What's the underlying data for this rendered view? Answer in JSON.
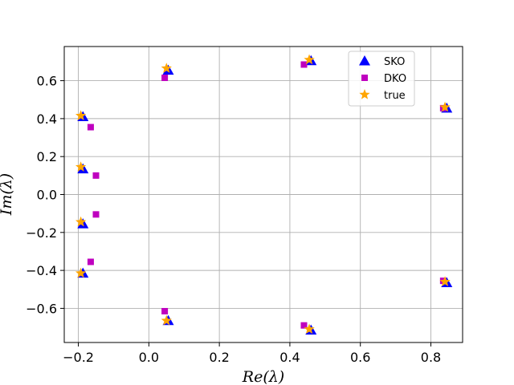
{
  "chart_data": {
    "type": "scatter",
    "title": "",
    "xlabel": "Re(λ)",
    "ylabel": "Im(λ)",
    "xlim": [
      -0.24,
      0.89
    ],
    "ylim": [
      -0.78,
      0.78
    ],
    "xticks": [
      -0.2,
      0.0,
      0.2,
      0.4,
      0.6,
      0.8
    ],
    "xtick_labels": [
      "−0.2",
      "0.0",
      "0.2",
      "0.4",
      "0.6",
      "0.8"
    ],
    "yticks": [
      -0.6,
      -0.4,
      -0.2,
      0.0,
      0.2,
      0.4,
      0.6
    ],
    "ytick_labels": [
      "−0.6",
      "−0.4",
      "−0.2",
      "0.0",
      "0.2",
      "0.4",
      "0.6"
    ],
    "grid": true,
    "legend_position": "top-right",
    "series": [
      {
        "name": "SKO",
        "marker": "triangle",
        "color": "#0000ff",
        "points": [
          {
            "x": -0.187,
            "y": 0.41
          },
          {
            "x": -0.187,
            "y": 0.135
          },
          {
            "x": -0.187,
            "y": -0.155
          },
          {
            "x": -0.187,
            "y": -0.415
          },
          {
            "x": 0.055,
            "y": 0.655
          },
          {
            "x": 0.055,
            "y": -0.665
          },
          {
            "x": 0.46,
            "y": 0.705
          },
          {
            "x": 0.46,
            "y": -0.715
          },
          {
            "x": 0.845,
            "y": 0.455
          },
          {
            "x": 0.845,
            "y": -0.465
          }
        ]
      },
      {
        "name": "DKO",
        "marker": "square",
        "color": "#bf00bf",
        "points": [
          {
            "x": -0.165,
            "y": 0.355
          },
          {
            "x": -0.15,
            "y": 0.1
          },
          {
            "x": -0.15,
            "y": -0.105
          },
          {
            "x": -0.165,
            "y": -0.355
          },
          {
            "x": 0.045,
            "y": 0.615
          },
          {
            "x": 0.045,
            "y": -0.615
          },
          {
            "x": 0.44,
            "y": 0.685
          },
          {
            "x": 0.44,
            "y": -0.69
          },
          {
            "x": 0.835,
            "y": 0.455
          },
          {
            "x": 0.835,
            "y": -0.455
          }
        ]
      },
      {
        "name": "true",
        "marker": "star",
        "color": "#ffa500",
        "points": [
          {
            "x": -0.193,
            "y": 0.415
          },
          {
            "x": -0.193,
            "y": 0.145
          },
          {
            "x": -0.193,
            "y": -0.145
          },
          {
            "x": -0.193,
            "y": -0.415
          },
          {
            "x": 0.05,
            "y": 0.665
          },
          {
            "x": 0.05,
            "y": -0.665
          },
          {
            "x": 0.455,
            "y": 0.71
          },
          {
            "x": 0.455,
            "y": -0.71
          },
          {
            "x": 0.84,
            "y": 0.46
          },
          {
            "x": 0.84,
            "y": -0.46
          }
        ]
      }
    ]
  }
}
